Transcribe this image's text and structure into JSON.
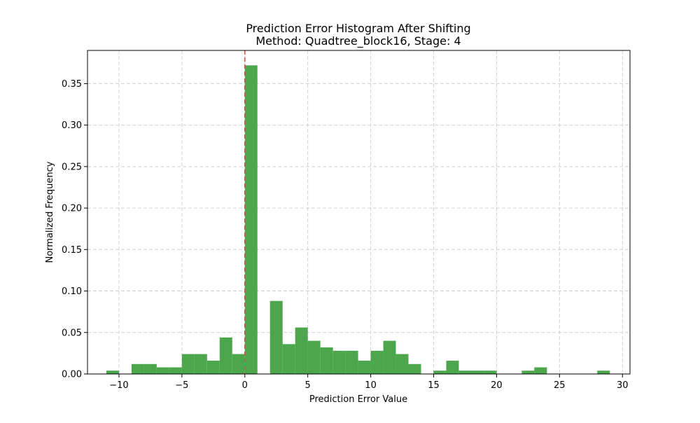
{
  "chart_data": {
    "type": "bar",
    "title": "Prediction Error Histogram After Shifting",
    "subtitle": "Method: Quadtree_block16, Stage: 4",
    "xlabel": "Prediction Error Value",
    "ylabel": "Normalized Frequency",
    "xlim": [
      -12.5,
      30.6
    ],
    "ylim": [
      0,
      0.39
    ],
    "xticks": [
      -10,
      -5,
      0,
      5,
      10,
      15,
      20,
      25,
      30
    ],
    "xtick_labels": [
      "−10",
      "−5",
      "0",
      "5",
      "10",
      "15",
      "20",
      "25",
      "30"
    ],
    "yticks": [
      0.0,
      0.05,
      0.1,
      0.15,
      0.2,
      0.25,
      0.3,
      0.35
    ],
    "ytick_labels": [
      "0.00",
      "0.05",
      "0.10",
      "0.15",
      "0.20",
      "0.25",
      "0.30",
      "0.35"
    ],
    "grid": true,
    "bar_color": "#4ca64c",
    "reference_line": {
      "x": 0,
      "color": "#d9534f",
      "style": "dashed"
    },
    "bins": [
      {
        "start": -11.0,
        "end": -10.0,
        "value": 0.004
      },
      {
        "start": -10.0,
        "end": -9.0,
        "value": 0.0
      },
      {
        "start": -9.0,
        "end": -8.0,
        "value": 0.012
      },
      {
        "start": -8.0,
        "end": -7.0,
        "value": 0.012
      },
      {
        "start": -7.0,
        "end": -6.0,
        "value": 0.008
      },
      {
        "start": -6.0,
        "end": -5.0,
        "value": 0.008
      },
      {
        "start": -5.0,
        "end": -4.0,
        "value": 0.024
      },
      {
        "start": -4.0,
        "end": -3.0,
        "value": 0.024
      },
      {
        "start": -3.0,
        "end": -2.0,
        "value": 0.016
      },
      {
        "start": -2.0,
        "end": -1.0,
        "value": 0.044
      },
      {
        "start": -1.0,
        "end": 0.0,
        "value": 0.024
      },
      {
        "start": 0.0,
        "end": 1.0,
        "value": 0.372
      },
      {
        "start": 1.0,
        "end": 2.0,
        "value": 0.0
      },
      {
        "start": 2.0,
        "end": 3.0,
        "value": 0.088
      },
      {
        "start": 3.0,
        "end": 4.0,
        "value": 0.036
      },
      {
        "start": 4.0,
        "end": 5.0,
        "value": 0.056
      },
      {
        "start": 5.0,
        "end": 6.0,
        "value": 0.04
      },
      {
        "start": 6.0,
        "end": 7.0,
        "value": 0.032
      },
      {
        "start": 7.0,
        "end": 8.0,
        "value": 0.028
      },
      {
        "start": 8.0,
        "end": 9.0,
        "value": 0.028
      },
      {
        "start": 9.0,
        "end": 10.0,
        "value": 0.016
      },
      {
        "start": 10.0,
        "end": 11.0,
        "value": 0.028
      },
      {
        "start": 11.0,
        "end": 12.0,
        "value": 0.04
      },
      {
        "start": 12.0,
        "end": 13.0,
        "value": 0.024
      },
      {
        "start": 13.0,
        "end": 14.0,
        "value": 0.012
      },
      {
        "start": 14.0,
        "end": 15.0,
        "value": 0.0
      },
      {
        "start": 15.0,
        "end": 16.0,
        "value": 0.004
      },
      {
        "start": 16.0,
        "end": 17.0,
        "value": 0.016
      },
      {
        "start": 17.0,
        "end": 18.0,
        "value": 0.004
      },
      {
        "start": 18.0,
        "end": 19.0,
        "value": 0.004
      },
      {
        "start": 19.0,
        "end": 20.0,
        "value": 0.004
      },
      {
        "start": 20.0,
        "end": 21.0,
        "value": 0.0
      },
      {
        "start": 21.0,
        "end": 22.0,
        "value": 0.0
      },
      {
        "start": 22.0,
        "end": 23.0,
        "value": 0.004
      },
      {
        "start": 23.0,
        "end": 24.0,
        "value": 0.008
      },
      {
        "start": 24.0,
        "end": 25.0,
        "value": 0.0
      },
      {
        "start": 25.0,
        "end": 26.0,
        "value": 0.0
      },
      {
        "start": 26.0,
        "end": 27.0,
        "value": 0.0
      },
      {
        "start": 27.0,
        "end": 28.0,
        "value": 0.0
      },
      {
        "start": 28.0,
        "end": 29.0,
        "value": 0.004
      }
    ]
  }
}
